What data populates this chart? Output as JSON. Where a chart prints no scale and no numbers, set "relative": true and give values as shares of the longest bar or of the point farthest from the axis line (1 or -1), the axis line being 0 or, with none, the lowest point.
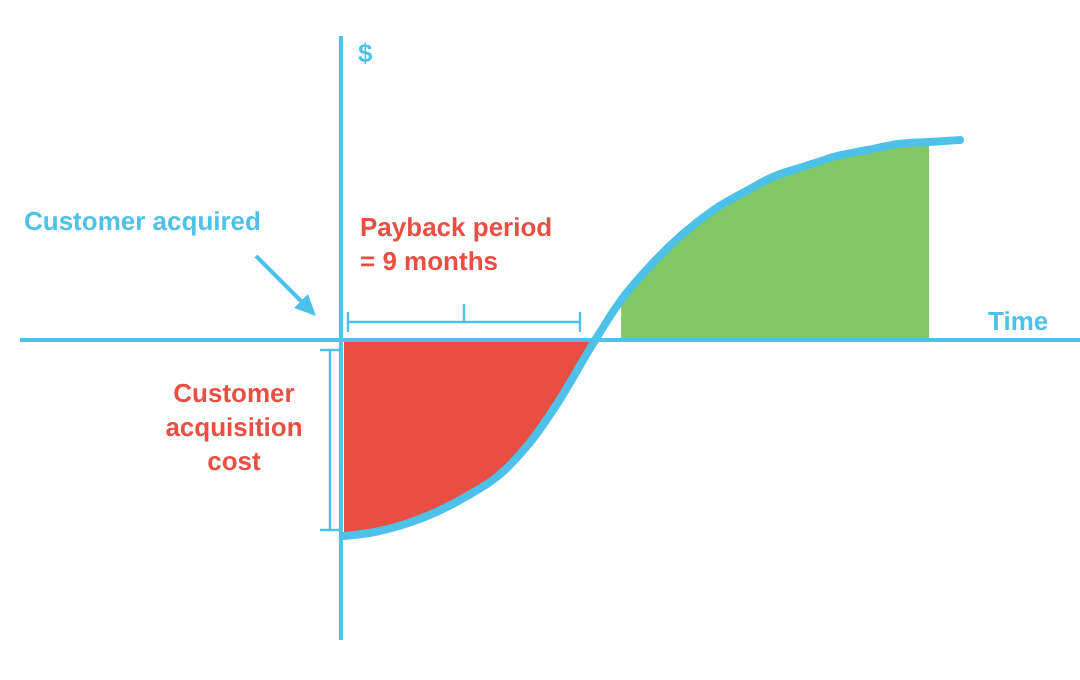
{
  "chart_data": {
    "type": "line",
    "relative": true,
    "xlabel": "Time",
    "ylabel": "$",
    "categories": [
      null,
      null,
      null,
      null,
      null,
      null,
      null,
      null,
      null,
      null,
      null,
      null,
      null,
      null,
      null,
      null,
      null,
      null,
      null,
      null,
      null
    ],
    "series": [
      {
        "type": "area",
        "color": "#e84f42",
        "values": [
          -0.98,
          -0.96,
          -0.92,
          -0.86,
          -0.78,
          -0.68,
          -0.52,
          -0.3,
          -0.04,
          null,
          null,
          null,
          null,
          null,
          null,
          null,
          null,
          null,
          null,
          null,
          null
        ]
      },
      {
        "type": "area",
        "color": "#82c865",
        "values": [
          null,
          null,
          null,
          null,
          null,
          null,
          null,
          null,
          null,
          0.2,
          0.38,
          0.53,
          0.65,
          0.74,
          0.82,
          0.87,
          0.92,
          0.95,
          0.98,
          0.99,
          null
        ]
      },
      {
        "color": "#4ec1e8",
        "values": [
          -0.98,
          -0.96,
          -0.92,
          -0.86,
          -0.78,
          -0.68,
          -0.52,
          -0.3,
          -0.04,
          0.2,
          0.38,
          0.53,
          0.65,
          0.74,
          0.82,
          0.87,
          0.92,
          0.95,
          0.98,
          0.99,
          1.0
        ]
      }
    ],
    "annotations": [
      "Customer acquired",
      "Payback period\n= 9 months",
      "Customer acquisition cost"
    ],
    "ref_lines": [
      {
        "axis": "y",
        "value": 0,
        "color": "#4ec1e8"
      }
    ]
  }
}
